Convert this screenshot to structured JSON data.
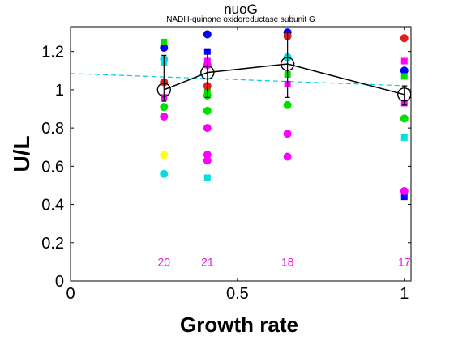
{
  "chart_data": {
    "type": "scatter",
    "title": "nuoG",
    "subtitle": "NADH-quinone oxidoreductase subunit G",
    "xlabel": "Growth rate",
    "ylabel": "U/L",
    "xlim": [
      0,
      1.02
    ],
    "ylim": [
      0,
      1.33
    ],
    "xticks": [
      0,
      0.5,
      1
    ],
    "xtick_labels": [
      "0",
      "0.5",
      "1"
    ],
    "yticks": [
      0,
      0.2,
      0.4,
      0.6,
      0.8,
      1.0,
      1.2
    ],
    "ytick_labels": [
      "0",
      "0.2",
      "0.4",
      "0.6",
      "0.8",
      "1",
      "1.2"
    ],
    "grid": false,
    "count_color": "#e020e0",
    "series": [
      {
        "color": "#0000ff",
        "marker": "circle",
        "points": [
          [
            0.28,
            1.22
          ],
          [
            0.41,
            1.29
          ],
          [
            0.65,
            1.3
          ],
          [
            1.0,
            1.1
          ]
        ]
      },
      {
        "color": "#0000ff",
        "marker": "square",
        "points": [
          [
            0.41,
            1.2
          ],
          [
            0.65,
            1.29
          ],
          [
            1.0,
            0.44
          ]
        ]
      },
      {
        "color": "#00e000",
        "marker": "circle",
        "points": [
          [
            0.28,
            0.91
          ],
          [
            0.41,
            0.97
          ],
          [
            0.41,
            0.89
          ],
          [
            0.65,
            0.92
          ],
          [
            1.0,
            0.85
          ]
        ]
      },
      {
        "color": "#00e000",
        "marker": "square",
        "points": [
          [
            0.28,
            1.25
          ],
          [
            0.41,
            1.0
          ],
          [
            0.65,
            1.08
          ],
          [
            1.0,
            1.07
          ]
        ]
      },
      {
        "color": "#ff00ff",
        "marker": "circle",
        "points": [
          [
            0.28,
            0.86
          ],
          [
            0.41,
            0.8
          ],
          [
            0.41,
            0.66
          ],
          [
            0.41,
            0.63
          ],
          [
            0.65,
            0.77
          ],
          [
            0.65,
            0.65
          ],
          [
            1.0,
            0.47
          ]
        ]
      },
      {
        "color": "#ff00ff",
        "marker": "square",
        "points": [
          [
            0.28,
            0.96
          ],
          [
            0.41,
            1.15
          ],
          [
            0.65,
            1.03
          ],
          [
            1.0,
            1.15
          ],
          [
            1.0,
            0.93
          ]
        ]
      },
      {
        "color": "#ff00ff",
        "marker": "circle",
        "points": [
          [
            0.41,
            1.13
          ]
        ]
      },
      {
        "color": "#00e0e0",
        "marker": "circle",
        "points": [
          [
            0.28,
            1.16
          ],
          [
            0.28,
            0.56
          ],
          [
            0.65,
            1.17
          ]
        ]
      },
      {
        "color": "#00e0e0",
        "marker": "square",
        "points": [
          [
            0.28,
            1.14
          ],
          [
            0.41,
            0.54
          ],
          [
            1.0,
            0.75
          ]
        ]
      },
      {
        "color": "#ffff00",
        "marker": "circle",
        "points": [
          [
            0.28,
            0.66
          ]
        ]
      },
      {
        "color": "#e02020",
        "marker": "circle",
        "points": [
          [
            0.28,
            1.04
          ],
          [
            0.41,
            1.02
          ],
          [
            0.65,
            1.28
          ],
          [
            1.0,
            1.27
          ]
        ]
      }
    ],
    "mean_line": {
      "color": "#000000",
      "points": [
        [
          0.28,
          1.0
        ],
        [
          0.41,
          1.09
        ],
        [
          0.65,
          1.135
        ],
        [
          1.0,
          0.975
        ]
      ],
      "error_bars": [
        [
          0.28,
          0.94,
          1.18
        ],
        [
          0.41,
          0.96,
          1.21
        ],
        [
          0.65,
          0.96,
          1.3
        ],
        [
          1.0,
          0.92,
          1.02
        ]
      ]
    },
    "trend_line": {
      "color": "#00d0e0",
      "style": "dashed",
      "points": [
        [
          0,
          1.085
        ],
        [
          1.02,
          1.02
        ]
      ]
    },
    "counts": [
      {
        "x": 0.28,
        "label": "20"
      },
      {
        "x": 0.41,
        "label": "21"
      },
      {
        "x": 0.65,
        "label": "18"
      },
      {
        "x": 1.0,
        "label": "17"
      }
    ],
    "count_y": 0.1
  }
}
